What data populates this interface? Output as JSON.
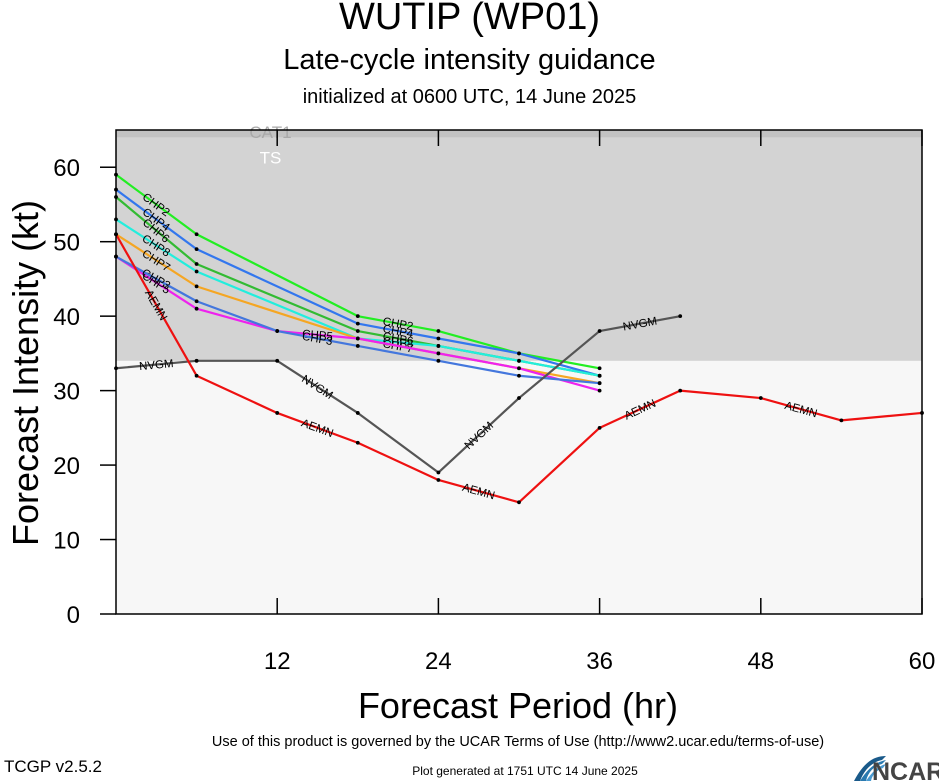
{
  "header": {
    "title": "WUTIP (WP01)",
    "subtitle": "Late-cycle intensity guidance",
    "initialized": "initialized at 0600 UTC, 14 June 2025"
  },
  "footer": {
    "terms": "Use of this product is governed by the UCAR Terms of Use (http://www2.ucar.edu/terms-of-use)",
    "version": "TCGP v2.5.2",
    "generated": "Plot generated at 1751 UTC   14 June 2025",
    "logo_text": "NCAR"
  },
  "chart_data": {
    "type": "line",
    "xlabel": "Forecast Period (hr)",
    "ylabel": "Forecast Intensity (kt)",
    "xlim": [
      0,
      60
    ],
    "ylim": [
      0,
      65
    ],
    "xticks": [
      12,
      24,
      36,
      48,
      60
    ],
    "yticks": [
      0,
      10,
      20,
      30,
      40,
      50,
      60
    ],
    "grid": false,
    "bands": [
      {
        "label": "",
        "from": 0,
        "to": 34,
        "color": "#f7f7f7"
      },
      {
        "label": "TS",
        "from": 34,
        "to": 64,
        "color": "#d3d3d3"
      },
      {
        "label": "CAT1",
        "from": 64,
        "to": 83,
        "color": "#c2c2c2"
      }
    ],
    "series": [
      {
        "name": "CHP2",
        "color": "#22ee22",
        "x": [
          0,
          6,
          18,
          24,
          30,
          36
        ],
        "y": [
          59,
          51,
          40,
          38,
          35,
          33
        ]
      },
      {
        "name": "CHP4",
        "color": "#3377ee",
        "x": [
          0,
          6,
          18,
          24,
          30,
          36
        ],
        "y": [
          57,
          49,
          39,
          37,
          35,
          32
        ]
      },
      {
        "name": "CHP6",
        "color": "#33bb33",
        "x": [
          0,
          6,
          18,
          24,
          30,
          36
        ],
        "y": [
          56,
          47,
          38,
          36,
          34,
          32
        ]
      },
      {
        "name": "CHP8",
        "color": "#22eedd",
        "x": [
          0,
          6,
          18,
          24,
          30,
          36
        ],
        "y": [
          53,
          46,
          37,
          36,
          34,
          32
        ]
      },
      {
        "name": "CHP7",
        "color": "#f5a623",
        "x": [
          0,
          6,
          18,
          24,
          30,
          36
        ],
        "y": [
          51,
          44,
          37,
          35,
          33,
          31
        ]
      },
      {
        "name": "CHP5",
        "color": "#ee22ee",
        "x": [
          0,
          6,
          12,
          18,
          24,
          30,
          36
        ],
        "y": [
          48,
          41,
          38,
          37,
          35,
          33,
          30
        ]
      },
      {
        "name": "CHP3",
        "color": "#4477dd",
        "x": [
          0,
          6,
          12,
          18,
          24,
          30,
          36
        ],
        "y": [
          48,
          42,
          38,
          36,
          34,
          32,
          31
        ]
      },
      {
        "name": "NVGM",
        "color": "#555555",
        "x": [
          0,
          6,
          12,
          18,
          24,
          30,
          36,
          42
        ],
        "y": [
          33,
          34,
          34,
          27,
          19,
          29,
          38,
          40
        ]
      },
      {
        "name": "AEMN",
        "color": "#ee1111",
        "x": [
          0,
          6,
          12,
          18,
          24,
          30,
          36,
          42,
          48,
          54,
          60
        ],
        "y": [
          51,
          32,
          27,
          23,
          18,
          15,
          25,
          30,
          29,
          26,
          27
        ]
      }
    ]
  }
}
